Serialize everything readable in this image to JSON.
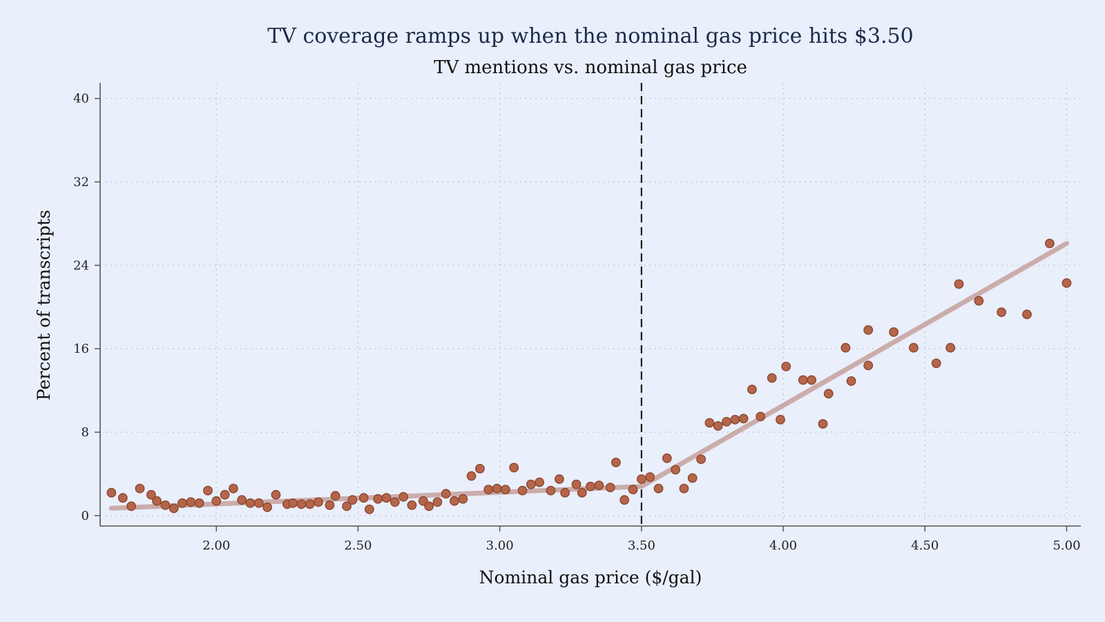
{
  "chart_data": {
    "type": "scatter",
    "title": "TV coverage ramps up when the nominal gas price hits $3.50",
    "subtitle": "TV mentions vs. nominal gas price",
    "xlabel": "Nominal gas price ($/gal)",
    "ylabel": "Percent of transcripts",
    "xlim": [
      1.59,
      5.05
    ],
    "ylim": [
      -1.0,
      41.5
    ],
    "x_ticks": [
      2.0,
      2.5,
      3.0,
      3.5,
      4.0,
      4.5,
      5.0
    ],
    "x_tick_labels": [
      "2.00",
      "2.50",
      "3.00",
      "3.50",
      "4.00",
      "4.50",
      "5.00"
    ],
    "y_ticks": [
      0,
      8,
      16,
      24,
      32,
      40
    ],
    "y_tick_labels": [
      "0",
      "8",
      "16",
      "24",
      "32",
      "40"
    ],
    "grid": true,
    "threshold_x": 3.5,
    "colors": {
      "background": "#e9effb",
      "points": "#b5654a",
      "points_outline": "#8a4630",
      "fit_line": "#c9a8a6",
      "threshold_line": "#1a1a1a",
      "title": "#1c2a4a",
      "grid": "#b8bcc8"
    },
    "fit_line": {
      "x": [
        1.63,
        3.5,
        5.0
      ],
      "y": [
        0.7,
        2.8,
        26.1
      ]
    },
    "series": [
      {
        "x": [
          1.63,
          1.67,
          1.7,
          1.73,
          1.77,
          1.79,
          1.82,
          1.85,
          1.88,
          1.91,
          1.94,
          1.97,
          2.0,
          2.03,
          2.06,
          2.09,
          2.12,
          2.15,
          2.18,
          2.21,
          2.25,
          2.27,
          2.3,
          2.33,
          2.36,
          2.4,
          2.42,
          2.46,
          2.48,
          2.52,
          2.54,
          2.57,
          2.6,
          2.63,
          2.66,
          2.69,
          2.73,
          2.75,
          2.78,
          2.81,
          2.84,
          2.87,
          2.9,
          2.93,
          2.96,
          2.99,
          3.02,
          3.05,
          3.08,
          3.11,
          3.14,
          3.18,
          3.21,
          3.23,
          3.27,
          3.29,
          3.32,
          3.35,
          3.39,
          3.41,
          3.44,
          3.47,
          3.5,
          3.53,
          3.56,
          3.59,
          3.62,
          3.65,
          3.68,
          3.71,
          3.74,
          3.77,
          3.8,
          3.83,
          3.86,
          3.89,
          3.92,
          3.96,
          3.99,
          4.01,
          4.07,
          4.1,
          4.14,
          4.16,
          4.22,
          4.24,
          4.3,
          4.3,
          4.39,
          4.46,
          4.54,
          4.59,
          4.62,
          4.69,
          4.77,
          4.86,
          4.94,
          5.0
        ],
        "y": [
          2.2,
          1.7,
          0.9,
          2.6,
          2.0,
          1.4,
          1.0,
          0.7,
          1.2,
          1.3,
          1.2,
          2.4,
          1.4,
          2.0,
          2.6,
          1.5,
          1.2,
          1.2,
          0.8,
          2.0,
          1.1,
          1.2,
          1.1,
          1.1,
          1.3,
          1.0,
          1.9,
          0.9,
          1.5,
          1.7,
          0.6,
          1.6,
          1.7,
          1.3,
          1.8,
          1.0,
          1.4,
          0.9,
          1.3,
          2.1,
          1.4,
          1.6,
          3.8,
          4.5,
          2.5,
          2.6,
          2.5,
          4.6,
          2.4,
          3.0,
          3.2,
          2.4,
          3.5,
          2.2,
          3.0,
          2.2,
          2.8,
          2.9,
          2.7,
          5.1,
          1.5,
          2.5,
          3.5,
          3.7,
          2.6,
          5.5,
          4.4,
          2.6,
          3.6,
          5.4,
          8.9,
          8.6,
          9.0,
          9.2,
          9.3,
          12.1,
          9.5,
          13.2,
          9.2,
          14.3,
          13.0,
          13.0,
          8.8,
          11.7,
          16.1,
          12.9,
          17.8,
          14.4,
          17.6,
          16.1,
          14.6,
          16.1,
          22.2,
          20.6,
          19.5,
          19.3,
          26.1,
          22.3
        ]
      }
    ]
  }
}
